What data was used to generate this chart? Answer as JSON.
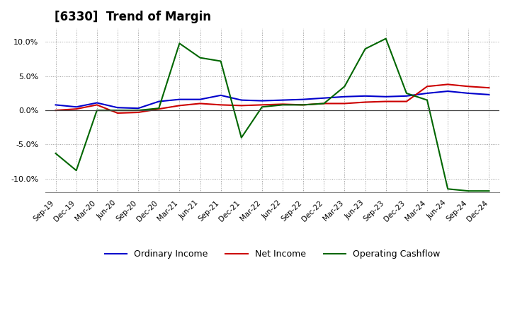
{
  "title": "[6330]  Trend of Margin",
  "x_labels": [
    "Sep-19",
    "Dec-19",
    "Mar-20",
    "Jun-20",
    "Sep-20",
    "Dec-20",
    "Mar-21",
    "Jun-21",
    "Sep-21",
    "Dec-21",
    "Mar-22",
    "Jun-22",
    "Sep-22",
    "Dec-22",
    "Mar-23",
    "Jun-23",
    "Sep-23",
    "Dec-23",
    "Mar-24",
    "Jun-24",
    "Sep-24",
    "Dec-24"
  ],
  "ordinary_income": [
    0.8,
    0.5,
    1.1,
    0.4,
    0.3,
    1.3,
    1.6,
    1.6,
    2.2,
    1.5,
    1.4,
    1.5,
    1.6,
    1.8,
    2.0,
    2.1,
    2.0,
    2.1,
    2.5,
    2.8,
    2.5,
    2.3
  ],
  "net_income": [
    0.0,
    0.2,
    0.8,
    -0.4,
    -0.3,
    0.2,
    0.7,
    1.0,
    0.8,
    0.7,
    0.8,
    0.9,
    0.8,
    1.0,
    1.0,
    1.2,
    1.3,
    1.3,
    3.5,
    3.8,
    3.5,
    3.3
  ],
  "operating_cashflow": [
    -6.3,
    -8.8,
    0.0,
    0.0,
    0.0,
    0.3,
    9.8,
    7.7,
    7.2,
    -4.0,
    0.5,
    0.8,
    0.8,
    1.0,
    3.5,
    9.0,
    10.5,
    2.5,
    1.5,
    -11.5,
    -11.8,
    -11.8
  ],
  "colors": {
    "ordinary_income": "#0000cc",
    "net_income": "#cc0000",
    "operating_cashflow": "#006600"
  },
  "ylim": [
    -12.0,
    12.0
  ],
  "yticks": [
    -10.0,
    -5.0,
    0.0,
    5.0,
    10.0
  ],
  "background_color": "#ffffff",
  "title_fontsize": 12,
  "legend_labels": [
    "Ordinary Income",
    "Net Income",
    "Operating Cashflow"
  ]
}
